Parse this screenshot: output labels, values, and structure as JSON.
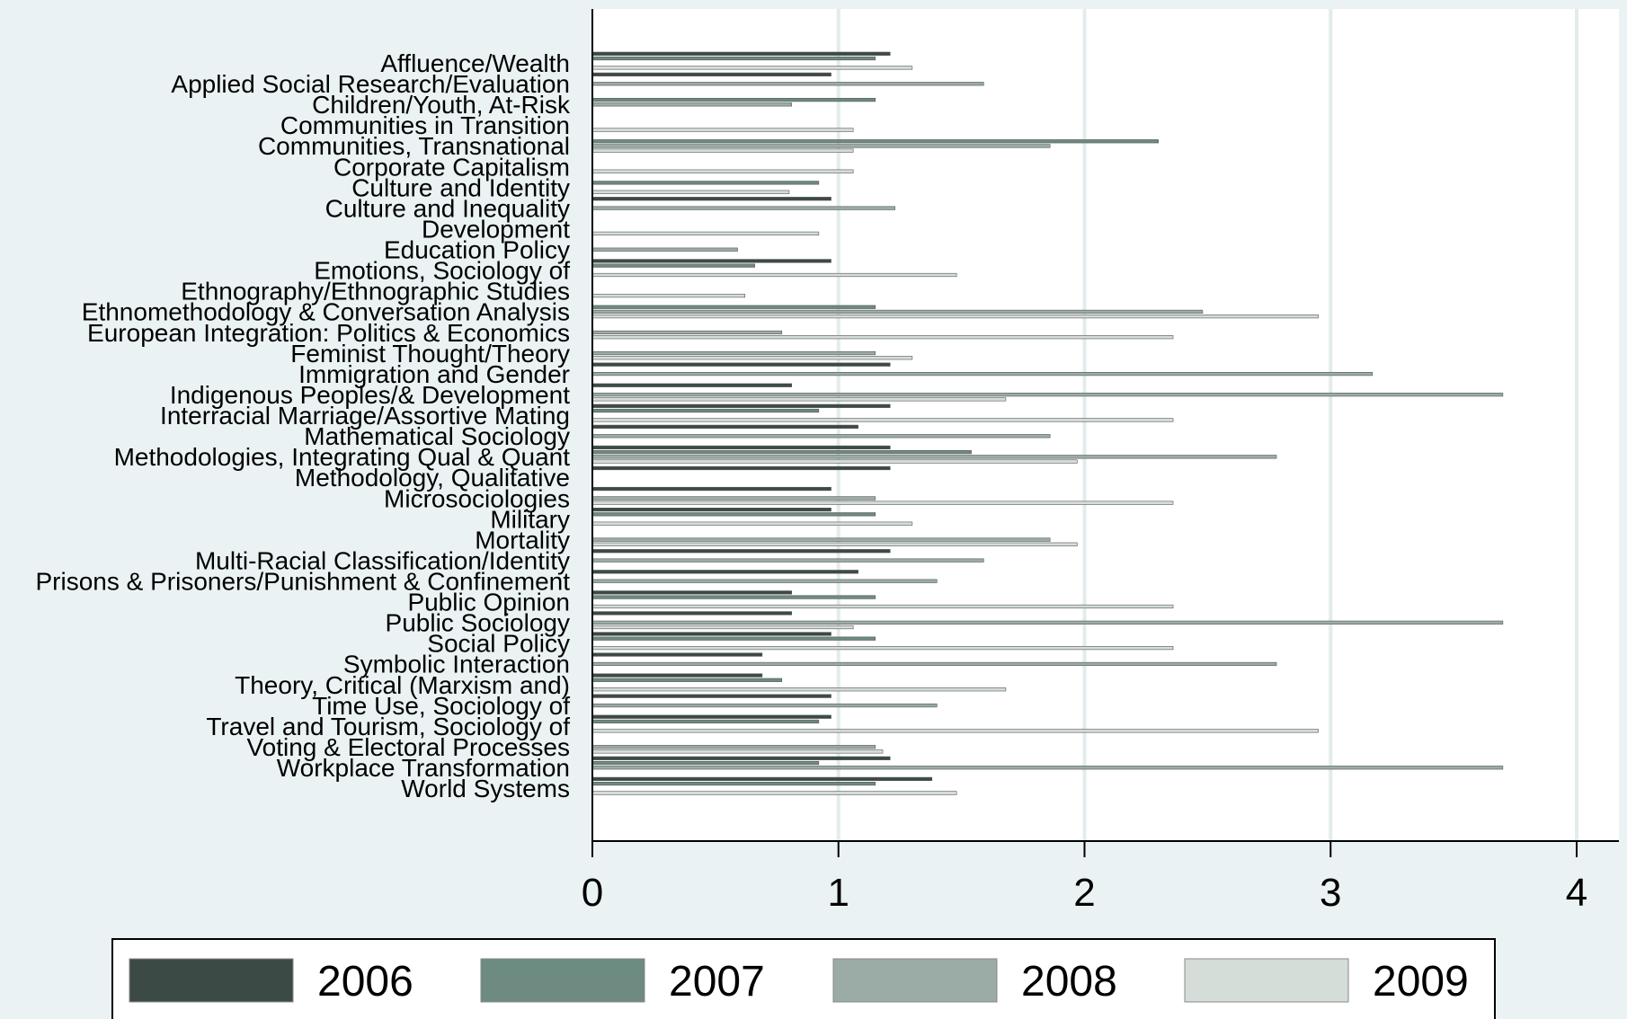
{
  "chart_data": {
    "type": "bar",
    "orientation": "horizontal",
    "title": "",
    "xlabel": "",
    "ylabel": "",
    "xlim": [
      0,
      4.2
    ],
    "xticks": [
      0,
      1,
      2,
      3,
      4
    ],
    "grid": true,
    "legend_position": "bottom",
    "categories": [
      "Affluence/Wealth",
      "Applied Social Research/Evaluation",
      "Children/Youth, At-Risk",
      "Communities in Transition",
      "Communities, Transnational",
      "Corporate Capitalism",
      "Culture and Identity",
      "Culture and Inequality",
      "Development",
      "Education Policy",
      "Emotions, Sociology of",
      "Ethnography/Ethnographic Studies",
      "Ethnomethodology & Conversation Analysis",
      "European Integration: Politics & Economics",
      "Feminist Thought/Theory",
      "Immigration and Gender",
      "Indigenous Peoples/& Development",
      "Interracial Marriage/Assortive Mating",
      "Mathematical Sociology",
      "Methodologies, Integrating Qual & Quant",
      "Methodology, Qualitative",
      "Microsociologies",
      "Military",
      "Mortality",
      "Multi-Racial Classification/Identity",
      "Prisons & Prisoners/Punishment & Confinement",
      "Public Opinion",
      "Public Sociology",
      "Social Policy",
      "Symbolic Interaction",
      "Theory, Critical (Marxism and)",
      "Time Use, Sociology of",
      "Travel and Tourism, Sociology of",
      "Voting & Electoral Processes",
      "Workplace Transformation",
      "World Systems"
    ],
    "series": [
      {
        "name": "2006",
        "color": "#3c4a45",
        "values": [
          1.21,
          0.97,
          null,
          null,
          null,
          null,
          null,
          0.97,
          null,
          null,
          0.97,
          null,
          null,
          null,
          null,
          1.21,
          0.81,
          1.21,
          1.08,
          1.21,
          1.21,
          0.97,
          0.97,
          null,
          1.21,
          1.08,
          0.81,
          0.81,
          0.97,
          0.69,
          0.69,
          0.97,
          0.97,
          null,
          1.21,
          1.38
        ]
      },
      {
        "name": "2007",
        "color": "#6d8b80",
        "values": [
          1.15,
          null,
          1.15,
          null,
          2.3,
          null,
          0.92,
          null,
          null,
          null,
          0.66,
          null,
          1.15,
          null,
          null,
          null,
          null,
          0.92,
          null,
          1.54,
          null,
          null,
          1.15,
          null,
          null,
          null,
          1.15,
          null,
          1.15,
          null,
          0.77,
          null,
          0.92,
          null,
          0.92,
          1.15
        ]
      },
      {
        "name": "2008",
        "color": "#9aaca5",
        "values": [
          null,
          1.59,
          0.81,
          null,
          1.86,
          null,
          null,
          1.23,
          null,
          0.59,
          null,
          null,
          2.48,
          0.77,
          1.15,
          3.17,
          3.7,
          null,
          1.86,
          2.78,
          null,
          1.15,
          null,
          1.86,
          1.59,
          1.4,
          null,
          3.7,
          null,
          2.78,
          null,
          1.4,
          null,
          1.15,
          3.7,
          null
        ]
      },
      {
        "name": "2009",
        "color": "#d4ddd8",
        "values": [
          1.3,
          null,
          null,
          1.06,
          1.06,
          1.06,
          0.8,
          null,
          0.92,
          null,
          1.48,
          0.62,
          2.95,
          2.36,
          1.3,
          null,
          1.68,
          2.36,
          null,
          1.97,
          null,
          2.36,
          1.3,
          1.97,
          null,
          null,
          2.36,
          1.06,
          2.36,
          null,
          1.68,
          null,
          2.95,
          1.18,
          null,
          1.48
        ]
      }
    ]
  }
}
